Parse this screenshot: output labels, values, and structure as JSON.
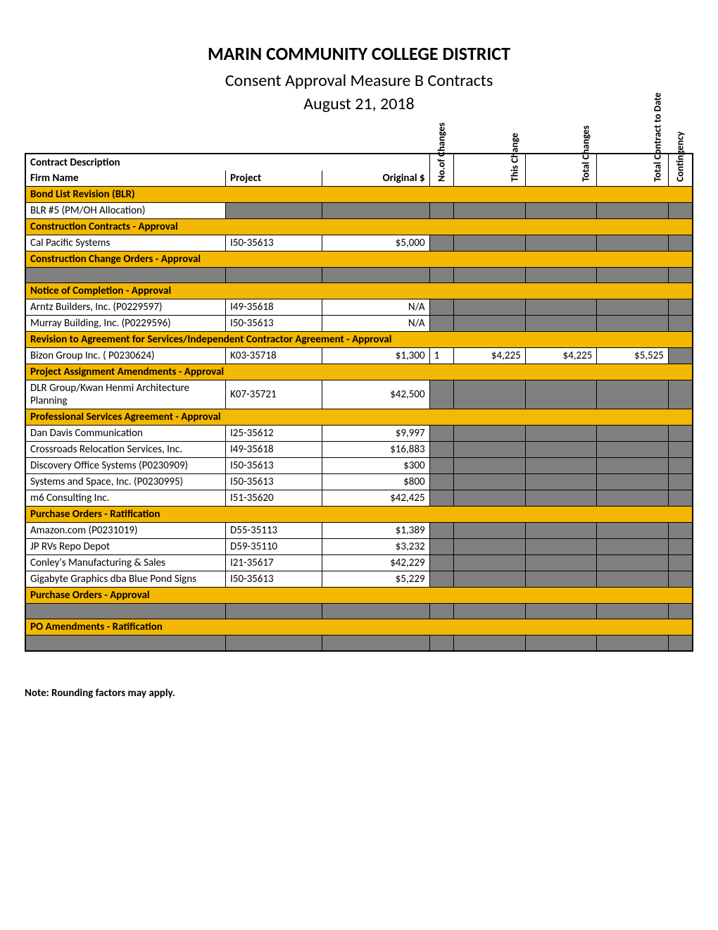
{
  "header": {
    "title": "MARIN COMMUNITY COLLEGE DISTRICT",
    "subtitle": "Consent Approval Measure B Contracts",
    "date": "August 21, 2018"
  },
  "tableHeader": {
    "topLeft": "Contract Description",
    "firm": "Firm Name",
    "project": "Project",
    "original": "Original $",
    "noChanges": "No.of Changes",
    "thisChange": "This Change",
    "totalChanges": "Total Changes",
    "totalContract": "Total Contract to Date",
    "contingency": "Contingency"
  },
  "colors": {
    "section": "#f3b800",
    "grey": "#808080",
    "border": "#000000",
    "bg": "#ffffff"
  },
  "sections": [
    {
      "label": "Bond List Revision (BLR)",
      "rows": [
        {
          "firm": "BLR #5 (PM/OH Allocation)",
          "project": "",
          "original": "",
          "nchg": "",
          "thischg": "",
          "totchg": "",
          "totcon": "",
          "cont": "",
          "grey": [
            "project",
            "original",
            "nchg",
            "thischg",
            "totchg",
            "totcon",
            "cont"
          ]
        }
      ]
    },
    {
      "label": "Construction Contracts - Approval",
      "rows": [
        {
          "firm": "Cal Pacific Systems",
          "project": "I50-35613",
          "original": "$5,000",
          "nchg": "",
          "thischg": "",
          "totchg": "",
          "totcon": "",
          "cont": "",
          "grey": [
            "nchg",
            "thischg",
            "totchg",
            "totcon",
            "cont"
          ]
        }
      ]
    },
    {
      "label": "Construction Change Orders - Approval",
      "rows": [
        {
          "firm": "",
          "project": "",
          "original": "",
          "nchg": "",
          "thischg": "",
          "totchg": "",
          "totcon": "",
          "cont": "",
          "grey": [
            "firm",
            "project",
            "original",
            "nchg",
            "thischg",
            "totchg",
            "totcon",
            "cont"
          ]
        }
      ]
    },
    {
      "label": "Notice of Completion - Approval",
      "rows": [
        {
          "firm": "Arntz Builders, Inc. (P0229597)",
          "project": "I49-35618",
          "original": "N/A",
          "nchg": "",
          "thischg": "",
          "totchg": "",
          "totcon": "",
          "cont": "",
          "grey": [
            "nchg",
            "thischg",
            "totchg",
            "totcon",
            "cont"
          ]
        },
        {
          "firm": "Murray Building, Inc. (P0229596)",
          "project": "I50-35613",
          "original": "N/A",
          "nchg": "",
          "thischg": "",
          "totchg": "",
          "totcon": "",
          "cont": "",
          "grey": [
            "nchg",
            "thischg",
            "totchg",
            "totcon",
            "cont"
          ]
        }
      ]
    },
    {
      "label": "Revision to Agreement for Services/Independent Contractor Agreement - Approval",
      "rows": [
        {
          "firm": "Bizon Group Inc.  ( P0230624)",
          "project": "K03-35718",
          "original": "$1,300",
          "nchg": "1",
          "thischg": "$4,225",
          "totchg": "$4,225",
          "totcon": "$5,525",
          "cont": "",
          "grey": [
            "cont"
          ]
        }
      ]
    },
    {
      "label": "Project Assignment Amendments - Approval",
      "rows": [
        {
          "firm": "DLR Group/Kwan Henmi Architecture Planning",
          "project": "K07-35721",
          "original": "$42,500",
          "nchg": "",
          "thischg": "",
          "totchg": "",
          "totcon": "",
          "cont": "",
          "grey": [
            "nchg",
            "thischg",
            "totchg",
            "totcon",
            "cont"
          ]
        }
      ]
    },
    {
      "label": "Professional Services Agreement - Approval",
      "rows": [
        {
          "firm": "Dan Davis Communication",
          "project": "I25-35612",
          "original": "$9,997",
          "nchg": "",
          "thischg": "",
          "totchg": "",
          "totcon": "",
          "cont": "",
          "grey": [
            "nchg",
            "thischg",
            "totchg",
            "totcon",
            "cont"
          ]
        },
        {
          "firm": "Crossroads Relocation Services, Inc.",
          "project": "I49-35618",
          "original": "$16,883",
          "nchg": "",
          "thischg": "",
          "totchg": "",
          "totcon": "",
          "cont": "",
          "grey": [
            "nchg",
            "thischg",
            "totchg",
            "totcon",
            "cont"
          ]
        },
        {
          "firm": "Discovery Office Systems  (P0230909)",
          "project": "I50-35613",
          "original": "$300",
          "nchg": "",
          "thischg": "",
          "totchg": "",
          "totcon": "",
          "cont": "",
          "grey": [
            "nchg",
            "thischg",
            "totchg",
            "totcon",
            "cont"
          ]
        },
        {
          "firm": "Systems and Space, Inc.  (P0230995)",
          "project": "I50-35613",
          "original": "$800",
          "nchg": "",
          "thischg": "",
          "totchg": "",
          "totcon": "",
          "cont": "",
          "grey": [
            "nchg",
            "thischg",
            "totchg",
            "totcon",
            "cont"
          ]
        },
        {
          "firm": "m6 Consulting Inc.",
          "project": "I51-35620",
          "original": "$42,425",
          "nchg": "",
          "thischg": "",
          "totchg": "",
          "totcon": "",
          "cont": "",
          "grey": [
            "nchg",
            "thischg",
            "totchg",
            "totcon",
            "cont"
          ]
        }
      ]
    },
    {
      "label": "Purchase Orders - Ratification",
      "rows": [
        {
          "firm": "Amazon.com  (P0231019)",
          "project": "D55-35113",
          "original": "$1,389",
          "nchg": "",
          "thischg": "",
          "totchg": "",
          "totcon": "",
          "cont": "",
          "grey": [
            "nchg",
            "thischg",
            "totchg",
            "totcon",
            "cont"
          ]
        },
        {
          "firm": "JP RVs Repo Depot",
          "project": "D59-35110",
          "original": "$3,232",
          "nchg": "",
          "thischg": "",
          "totchg": "",
          "totcon": "",
          "cont": "",
          "grey": [
            "nchg",
            "thischg",
            "totchg",
            "totcon",
            "cont"
          ]
        },
        {
          "firm": "Conley's Manufacturing & Sales",
          "project": "I21-35617",
          "original": "$42,229",
          "nchg": "",
          "thischg": "",
          "totchg": "",
          "totcon": "",
          "cont": "",
          "grey": [
            "nchg",
            "thischg",
            "totchg",
            "totcon",
            "cont"
          ]
        },
        {
          "firm": "Gigabyte Graphics dba Blue Pond Signs",
          "project": "I50-35613",
          "original": "$5,229",
          "nchg": "",
          "thischg": "",
          "totchg": "",
          "totcon": "",
          "cont": "",
          "grey": [
            "nchg",
            "thischg",
            "totchg",
            "totcon",
            "cont"
          ]
        }
      ]
    },
    {
      "label": "Purchase Orders - Approval",
      "rows": [
        {
          "firm": "",
          "project": "",
          "original": "",
          "nchg": "",
          "thischg": "",
          "totchg": "",
          "totcon": "",
          "cont": "",
          "grey": [
            "firm",
            "project",
            "original",
            "nchg",
            "thischg",
            "totchg",
            "totcon",
            "cont"
          ]
        }
      ]
    },
    {
      "label": "PO Amendments - Ratification",
      "rows": [
        {
          "firm": "",
          "project": "",
          "original": "",
          "nchg": "",
          "thischg": "",
          "totchg": "",
          "totcon": "",
          "cont": "",
          "grey": [
            "firm",
            "project",
            "original",
            "nchg",
            "thischg",
            "totchg",
            "totcon",
            "cont"
          ]
        }
      ]
    }
  ],
  "note": "Note: Rounding factors may apply."
}
